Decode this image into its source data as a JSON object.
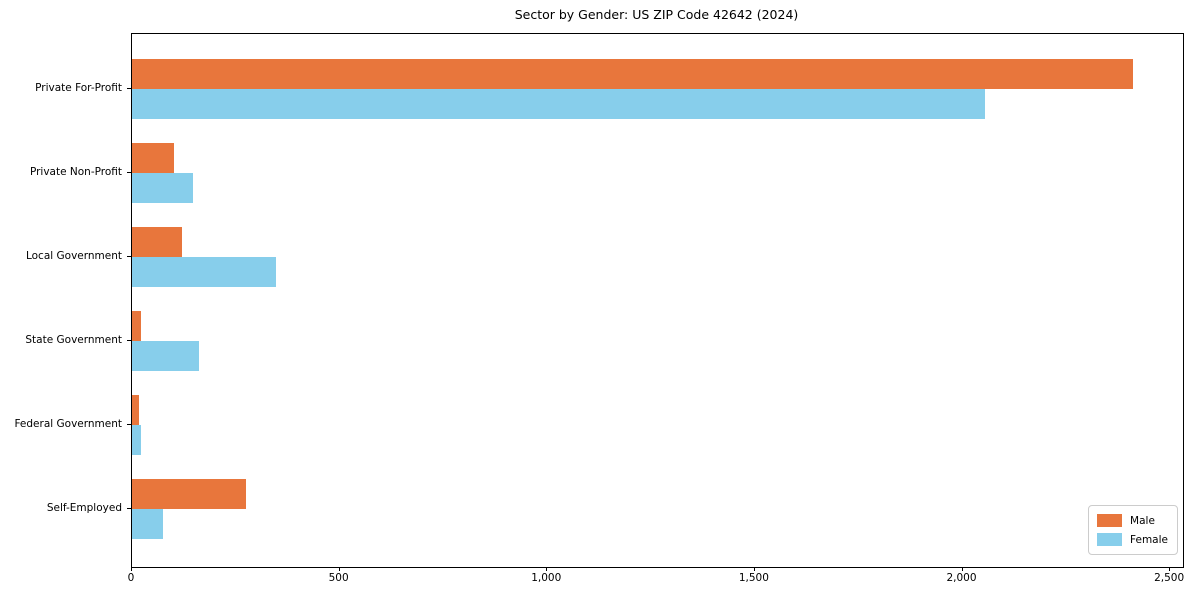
{
  "chart_data": {
    "type": "bar",
    "orientation": "horizontal",
    "title": "Sector by Gender: US ZIP Code 42642 (2024)",
    "xlabel": "",
    "ylabel": "",
    "categories": [
      "Private For-Profit",
      "Private Non-Profit",
      "Local Government",
      "State Government",
      "Federal Government",
      "Self-Employed"
    ],
    "series": [
      {
        "name": "Male",
        "color": "#e8763c",
        "values": [
          2410,
          100,
          121,
          22,
          17,
          274
        ]
      },
      {
        "name": "Female",
        "color": "#87ceeb",
        "values": [
          2055,
          148,
          347,
          161,
          21,
          75
        ]
      }
    ],
    "xlim": [
      0,
      2531
    ],
    "xticks": [
      0,
      500,
      1000,
      1500,
      2000,
      2500
    ],
    "xtick_labels": [
      "0",
      "500",
      "1,000",
      "1,500",
      "2,000",
      "2,500"
    ],
    "grid": false,
    "legend_position": "lower right",
    "axis_color": "#000000",
    "background_color": "#ffffff"
  }
}
